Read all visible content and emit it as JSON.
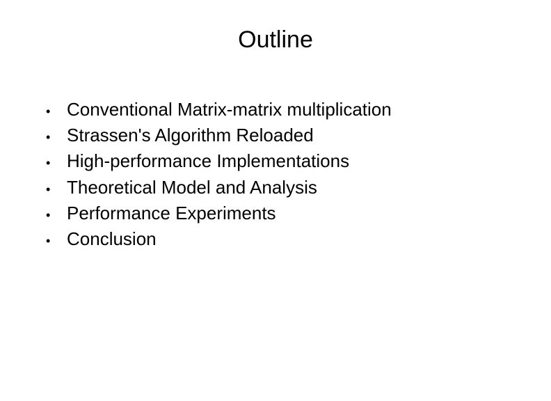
{
  "slide": {
    "title": "Outline",
    "bullets": [
      "Conventional Matrix-matrix multiplication",
      "Strassen's Algorithm Reloaded",
      "High-performance Implementations",
      "Theoretical Model and Analysis",
      "Performance Experiments",
      "Conclusion"
    ],
    "colors": {
      "background": "#ffffff",
      "text": "#000000"
    },
    "typography": {
      "title_fontsize": 34,
      "bullet_fontsize": 26,
      "font_family": "Arial"
    }
  }
}
